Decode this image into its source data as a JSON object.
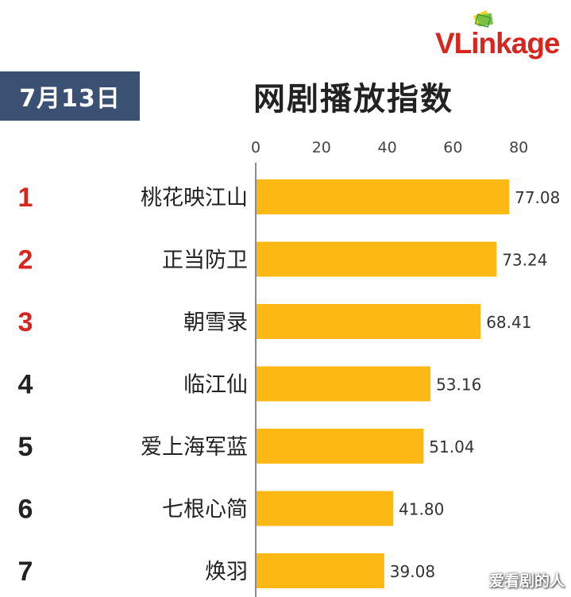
{
  "date_badge": "7月13日",
  "title": "网剧播放指数",
  "logo": {
    "text_v": "VLin",
    "text_rest": "kage"
  },
  "watermark": "爱看剧的人",
  "colors": {
    "bar": "#fdb813",
    "rank_top": "#d7261e",
    "rank_other": "#222222",
    "badge_bg": "#3a5173"
  },
  "chart_data": {
    "type": "bar",
    "orientation": "horizontal",
    "title": "网剧播放指数",
    "xlim": [
      0,
      80
    ],
    "ticks": [
      0,
      20,
      40,
      60,
      80
    ],
    "ranks": [
      "1",
      "2",
      "3",
      "4",
      "5",
      "6",
      "7"
    ],
    "categories": [
      "桃花映江山",
      "正当防卫",
      "朝雪录",
      "临江仙",
      "爱上海军蓝",
      "七根心简",
      "焕羽"
    ],
    "values": [
      77.08,
      73.24,
      68.41,
      53.16,
      51.04,
      41.8,
      39.08
    ],
    "value_labels": [
      "77.08",
      "73.24",
      "68.41",
      "53.16",
      "51.04",
      "41.80",
      "39.08"
    ],
    "grid": false,
    "legend": "none"
  }
}
